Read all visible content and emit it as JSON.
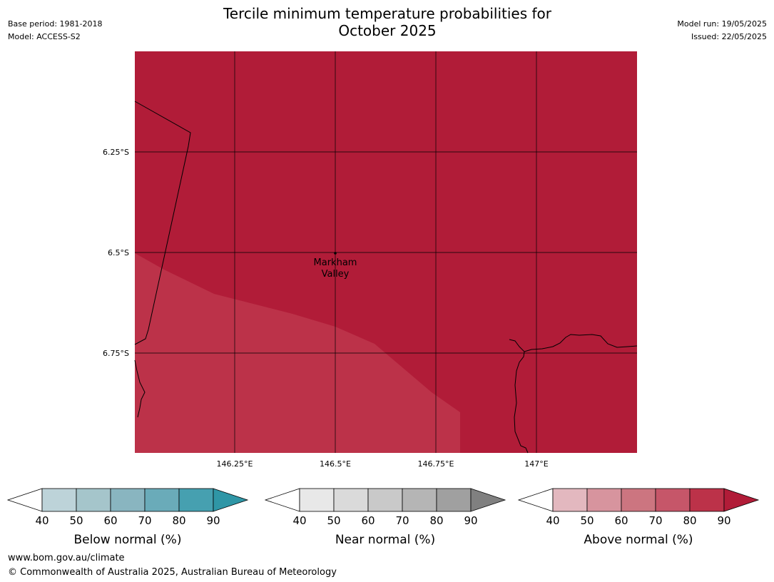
{
  "header": {
    "title_line1": "Tercile minimum temperature probabilities for",
    "title_line2": "October 2025",
    "base_period": "Base period: 1981-2018",
    "model": "Model: ACCESS-S2",
    "model_run": "Model run: 19/05/2025",
    "issued": "Issued: 22/05/2025"
  },
  "map": {
    "lat_labels": [
      "6.25°S",
      "6.5°S",
      "6.75°S"
    ],
    "lon_labels": [
      "146.25°E",
      "146.5°E",
      "146.75°E",
      "147°E"
    ],
    "place": {
      "name_line1": "Markham",
      "name_line2": "Valley"
    },
    "colors": {
      "above_80_90": "#b11c38",
      "above_70_80": "#bc3249",
      "grid": "#000000",
      "coast": "#000000"
    }
  },
  "legends": [
    {
      "title": "Below normal (%)",
      "ticks": [
        "40",
        "50",
        "60",
        "70",
        "80",
        "90"
      ],
      "colors": [
        "#ffffff",
        "#bdd3d9",
        "#a5c5cb",
        "#89b5c0",
        "#6aabb9",
        "#46a0b0",
        "#2f96a6"
      ]
    },
    {
      "title": "Near normal (%)",
      "ticks": [
        "40",
        "50",
        "60",
        "70",
        "80",
        "90"
      ],
      "colors": [
        "#ffffff",
        "#e8e8e8",
        "#dadada",
        "#c9c9c9",
        "#b5b5b5",
        "#a0a0a0",
        "#808080"
      ]
    },
    {
      "title": "Above normal (%)",
      "ticks": [
        "40",
        "50",
        "60",
        "70",
        "80",
        "90"
      ],
      "colors": [
        "#ffffff",
        "#e3b8bf",
        "#d7949e",
        "#cc7580",
        "#c65669",
        "#bc3249",
        "#b11c38"
      ]
    }
  ],
  "footer": {
    "url": "www.bom.gov.au/climate",
    "copyright": "© Commonwealth of Australia 2025, Australian Bureau of Meteorology"
  }
}
